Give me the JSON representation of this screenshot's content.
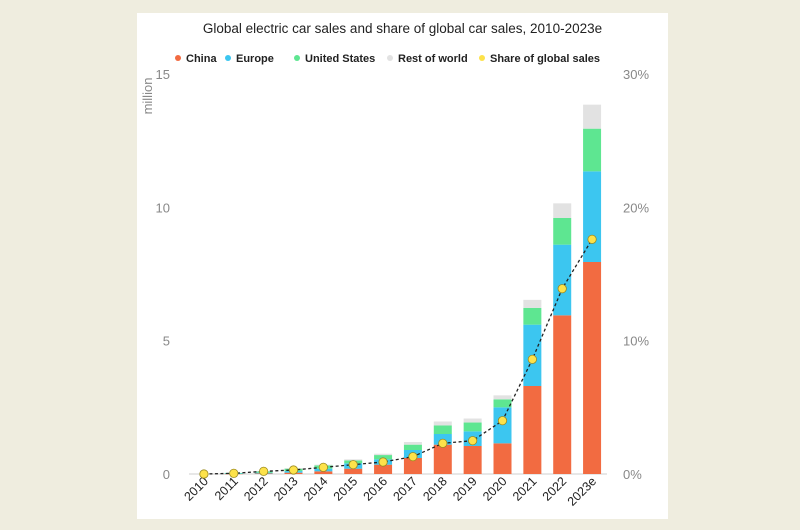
{
  "chart_data": {
    "type": "bar",
    "title": "Global electric car sales and share of global car sales, 2010-2023e",
    "ylabel": "million",
    "ylim": [
      0,
      15
    ],
    "yticks": [
      0,
      5,
      10,
      15
    ],
    "y2lim": [
      0,
      30
    ],
    "y2ticks": [
      "0%",
      "10%",
      "20%",
      "30%"
    ],
    "stacked": true,
    "grid": false,
    "legend_position": "top",
    "categories": [
      "2010",
      "2011",
      "2012",
      "2013",
      "2014",
      "2015",
      "2016",
      "2017",
      "2018",
      "2019",
      "2020",
      "2021",
      "2022",
      "2023e"
    ],
    "series": [
      {
        "name": "China",
        "color": "#f26b41",
        "values": [
          0.0,
          0.01,
          0.02,
          0.05,
          0.1,
          0.2,
          0.35,
          0.6,
          1.1,
          1.05,
          1.15,
          3.3,
          5.95,
          7.95
        ]
      },
      {
        "name": "Europe",
        "color": "#3cc6f0",
        "values": [
          0.0,
          0.01,
          0.03,
          0.06,
          0.1,
          0.2,
          0.2,
          0.3,
          0.4,
          0.55,
          1.35,
          2.3,
          2.65,
          3.4
        ]
      },
      {
        "name": "United States",
        "color": "#5ee691",
        "values": [
          0.0,
          0.02,
          0.05,
          0.09,
          0.12,
          0.11,
          0.16,
          0.2,
          0.32,
          0.33,
          0.3,
          0.63,
          1.0,
          1.6
        ]
      },
      {
        "name": "Rest of world",
        "color": "#e2e2e2",
        "values": [
          0.0,
          0.0,
          0.01,
          0.02,
          0.03,
          0.04,
          0.05,
          0.1,
          0.15,
          0.15,
          0.15,
          0.3,
          0.55,
          0.9
        ]
      }
    ],
    "share_series": {
      "name": "Share of global sales",
      "color": "#fde24a",
      "unit": "%",
      "values": [
        0.0,
        0.05,
        0.2,
        0.3,
        0.5,
        0.7,
        0.9,
        1.3,
        2.3,
        2.5,
        4.0,
        8.6,
        13.9,
        17.6
      ]
    }
  }
}
